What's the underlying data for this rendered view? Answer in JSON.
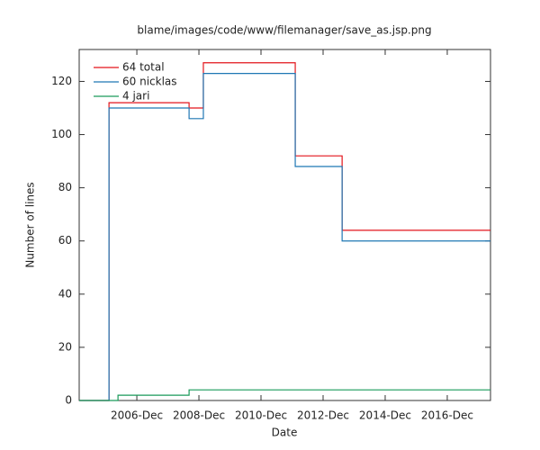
{
  "chart_data": {
    "type": "line",
    "step": "post",
    "title": "blame/images/code/www/filemanager/save_as.jsp.png",
    "x_label": "Date",
    "y_label": "Number of lines",
    "x": [
      2005.06,
      2006.02,
      2006.31,
      2008.6,
      2009.06,
      2012.02,
      2013.53,
      2018.31
    ],
    "series": [
      {
        "name": "64 total",
        "color": "#e3151b",
        "values": [
          0,
          112,
          112,
          110,
          127,
          92,
          64,
          64
        ]
      },
      {
        "name": "60 nicklas",
        "color": "#1f77b4",
        "values": [
          0,
          110,
          110,
          106,
          123,
          88,
          60,
          60
        ]
      },
      {
        "name": "4 jari",
        "color": "#1a9a5a",
        "values": [
          0,
          0,
          2,
          4,
          4,
          4,
          4,
          4
        ]
      }
    ],
    "xlim": [
      2005.06,
      2018.31
    ],
    "xticks": [
      {
        "value": 2006.917,
        "label": "2006-Dec"
      },
      {
        "value": 2008.917,
        "label": "2008-Dec"
      },
      {
        "value": 2010.917,
        "label": "2010-Dec"
      },
      {
        "value": 2012.917,
        "label": "2012-Dec"
      },
      {
        "value": 2014.917,
        "label": "2014-Dec"
      },
      {
        "value": 2016.917,
        "label": "2016-Dec"
      }
    ],
    "ylim": [
      0,
      132
    ],
    "yticks": [
      0,
      20,
      40,
      60,
      80,
      100,
      120
    ],
    "legend": "top-left",
    "grid": false
  }
}
